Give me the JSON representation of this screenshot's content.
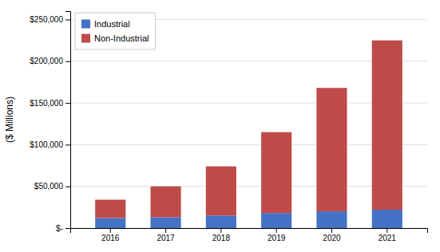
{
  "chart_data": {
    "type": "bar",
    "stacked": true,
    "categories": [
      "2016",
      "2017",
      "2018",
      "2019",
      "2020",
      "2021"
    ],
    "series": [
      {
        "name": "Industrial",
        "color": "#4472C4",
        "values": [
          12000,
          13000,
          15000,
          18000,
          20000,
          22000
        ]
      },
      {
        "name": "Non-Industrial",
        "color": "#BE4B48",
        "values": [
          22000,
          37000,
          59000,
          97000,
          148000,
          203000
        ]
      }
    ],
    "y_label": "($ Millions)",
    "ylim": [
      0,
      260000
    ],
    "yticks": [
      {
        "value": 0,
        "label": "$-"
      },
      {
        "value": 50000,
        "label": "$50,000"
      },
      {
        "value": 100000,
        "label": "$100,000"
      },
      {
        "value": 150000,
        "label": "$150,000"
      },
      {
        "value": 200000,
        "label": "$200,000"
      },
      {
        "value": 250000,
        "label": "$250,000"
      }
    ],
    "grid": true,
    "legend": "upper left"
  }
}
